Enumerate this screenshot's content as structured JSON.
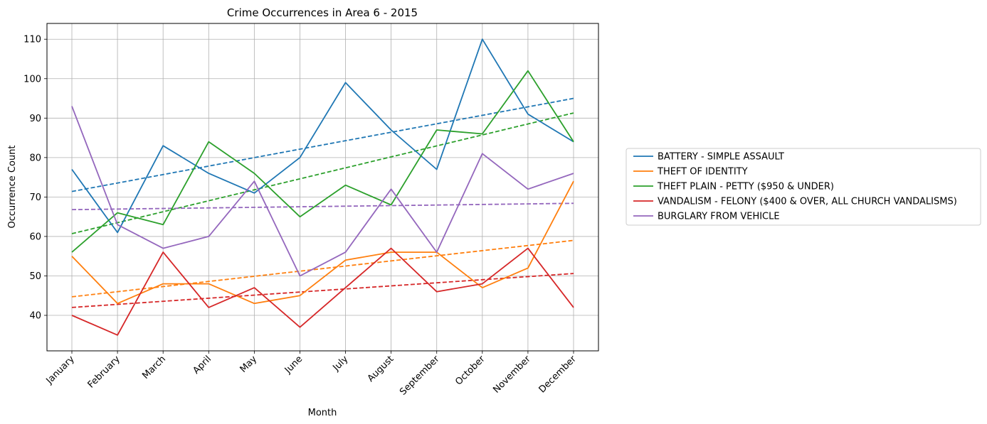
{
  "chart_data": {
    "type": "line",
    "title": "Crime Occurrences in Area 6 - 2015",
    "xlabel": "Month",
    "ylabel": "Occurrence Count",
    "categories": [
      "January",
      "February",
      "March",
      "April",
      "May",
      "June",
      "July",
      "August",
      "September",
      "October",
      "November",
      "December"
    ],
    "ylim": [
      31,
      114
    ],
    "yticks": [
      40,
      50,
      60,
      70,
      80,
      90,
      100,
      110
    ],
    "grid": true,
    "legend_position": "right",
    "series": [
      {
        "name": "BATTERY - SIMPLE ASSAULT",
        "color": "#1f77b4",
        "values": [
          77,
          61,
          83,
          76,
          71,
          80,
          99,
          87,
          77,
          110,
          91,
          84
        ],
        "trend": [
          71.4,
          95.0
        ]
      },
      {
        "name": "THEFT OF IDENTITY",
        "color": "#ff7f0e",
        "values": [
          55,
          43,
          48,
          48,
          43,
          45,
          54,
          56,
          56,
          47,
          52,
          74
        ],
        "trend": [
          44.7,
          59.0
        ]
      },
      {
        "name": "THEFT PLAIN - PETTY ($950 & UNDER)",
        "color": "#2ca02c",
        "values": [
          56,
          66,
          63,
          84,
          76,
          65,
          73,
          68,
          87,
          86,
          102,
          84
        ],
        "trend": [
          60.7,
          91.3
        ]
      },
      {
        "name": "VANDALISM - FELONY ($400 & OVER, ALL CHURCH VANDALISMS)",
        "color": "#d62728",
        "values": [
          40,
          35,
          56,
          42,
          47,
          37,
          47,
          57,
          46,
          48,
          57,
          42
        ],
        "trend": [
          42.0,
          50.6
        ]
      },
      {
        "name": "BURGLARY FROM VEHICLE",
        "color": "#9467bd",
        "values": [
          93,
          63,
          57,
          60,
          74,
          50,
          56,
          72,
          56,
          81,
          72,
          76
        ],
        "trend": [
          66.8,
          68.4
        ]
      }
    ]
  }
}
